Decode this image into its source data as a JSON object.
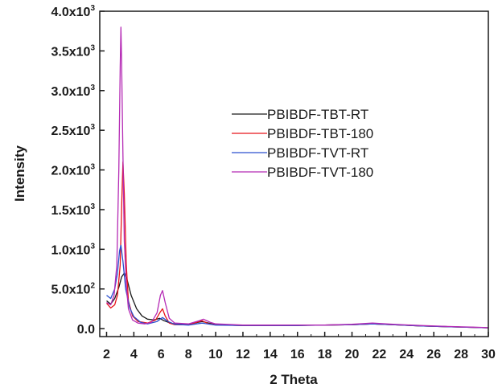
{
  "chart_data": {
    "type": "line",
    "title": "",
    "xlabel": "2 Theta",
    "ylabel": "Intensity",
    "xlim": [
      1.5,
      30
    ],
    "ylim": [
      -100,
      4000
    ],
    "grid": false,
    "legend_position": "center-right",
    "x_ticks": [
      2,
      4,
      6,
      8,
      10,
      12,
      14,
      16,
      18,
      20,
      22,
      24,
      26,
      28,
      30
    ],
    "x_tick_labels": [
      "2",
      "4",
      "6",
      "8",
      "10",
      "12",
      "14",
      "16",
      "18",
      "20",
      "22",
      "24",
      "26",
      "28",
      "30"
    ],
    "y_ticks": [
      {
        "value": 0,
        "mantissa": "0.0",
        "exp": ""
      },
      {
        "value": 500,
        "mantissa": "5.0x10",
        "exp": "2"
      },
      {
        "value": 1000,
        "mantissa": "1.0x10",
        "exp": "3"
      },
      {
        "value": 1500,
        "mantissa": "1.5x10",
        "exp": "3"
      },
      {
        "value": 2000,
        "mantissa": "2.0x10",
        "exp": "3"
      },
      {
        "value": 2500,
        "mantissa": "2.5x10",
        "exp": "3"
      },
      {
        "value": 3000,
        "mantissa": "3.0x10",
        "exp": "3"
      },
      {
        "value": 3500,
        "mantissa": "3.5x10",
        "exp": "3"
      },
      {
        "value": 4000,
        "mantissa": "4.0x10",
        "exp": "3"
      }
    ],
    "series": [
      {
        "name": "PBIBDF-TBT-RT",
        "color": "#1a1a1a",
        "x": [
          2.0,
          2.3,
          2.6,
          2.9,
          3.1,
          3.3,
          3.5,
          3.8,
          4.2,
          4.6,
          5.0,
          5.5,
          5.9,
          6.2,
          6.6,
          7.0,
          8.0,
          9.0,
          10,
          12,
          14,
          16,
          18,
          20,
          21.5,
          23,
          25,
          27,
          29,
          30
        ],
        "y": [
          350,
          310,
          380,
          520,
          650,
          700,
          620,
          420,
          250,
          160,
          120,
          110,
          130,
          100,
          75,
          60,
          55,
          90,
          50,
          40,
          40,
          40,
          45,
          50,
          60,
          50,
          35,
          25,
          15,
          10
        ]
      },
      {
        "name": "PBIBDF-TBT-180",
        "color": "#e8141b",
        "x": [
          2.0,
          2.3,
          2.6,
          2.8,
          3.0,
          3.1,
          3.2,
          3.3,
          3.45,
          3.6,
          3.9,
          4.3,
          5.0,
          5.6,
          5.9,
          6.1,
          6.3,
          6.6,
          7.0,
          8.0,
          9.0,
          9.5,
          10,
          12,
          14,
          16,
          18,
          20,
          21.5,
          23,
          25,
          27,
          29,
          30
        ],
        "y": [
          320,
          260,
          300,
          420,
          800,
          1500,
          2100,
          1700,
          800,
          350,
          160,
          90,
          70,
          110,
          200,
          250,
          160,
          70,
          50,
          50,
          100,
          60,
          50,
          40,
          40,
          45,
          45,
          50,
          60,
          50,
          35,
          25,
          15,
          10
        ]
      },
      {
        "name": "PBIBDF-TVT-RT",
        "color": "#2a4fcf",
        "x": [
          2.0,
          2.3,
          2.6,
          2.8,
          2.95,
          3.05,
          3.2,
          3.4,
          3.7,
          4.0,
          4.5,
          5.0,
          5.7,
          6.1,
          6.5,
          7.0,
          8.0,
          9.0,
          10,
          12,
          14,
          16,
          18,
          20,
          21.5,
          23,
          25,
          27,
          29,
          30
        ],
        "y": [
          420,
          380,
          500,
          700,
          980,
          1050,
          850,
          500,
          260,
          150,
          80,
          60,
          90,
          140,
          90,
          55,
          45,
          70,
          45,
          40,
          40,
          40,
          45,
          50,
          60,
          50,
          35,
          25,
          15,
          10
        ]
      },
      {
        "name": "PBIBDF-TVT-180",
        "color": "#b52bb5",
        "x": [
          2.0,
          2.3,
          2.55,
          2.75,
          2.9,
          3.0,
          3.05,
          3.1,
          3.2,
          3.3,
          3.45,
          3.6,
          3.9,
          4.3,
          4.8,
          5.3,
          5.7,
          5.95,
          6.1,
          6.3,
          6.6,
          7.0,
          8.0,
          8.8,
          9.1,
          9.6,
          10,
          12,
          14,
          16,
          18,
          20,
          21.5,
          23,
          25,
          27,
          29,
          30
        ],
        "y": [
          330,
          300,
          420,
          800,
          2000,
          3300,
          3800,
          3400,
          2200,
          1100,
          550,
          250,
          110,
          70,
          60,
          80,
          200,
          420,
          480,
          330,
          130,
          70,
          60,
          100,
          120,
          80,
          60,
          45,
          45,
          45,
          45,
          55,
          70,
          55,
          40,
          28,
          18,
          12
        ]
      }
    ]
  }
}
